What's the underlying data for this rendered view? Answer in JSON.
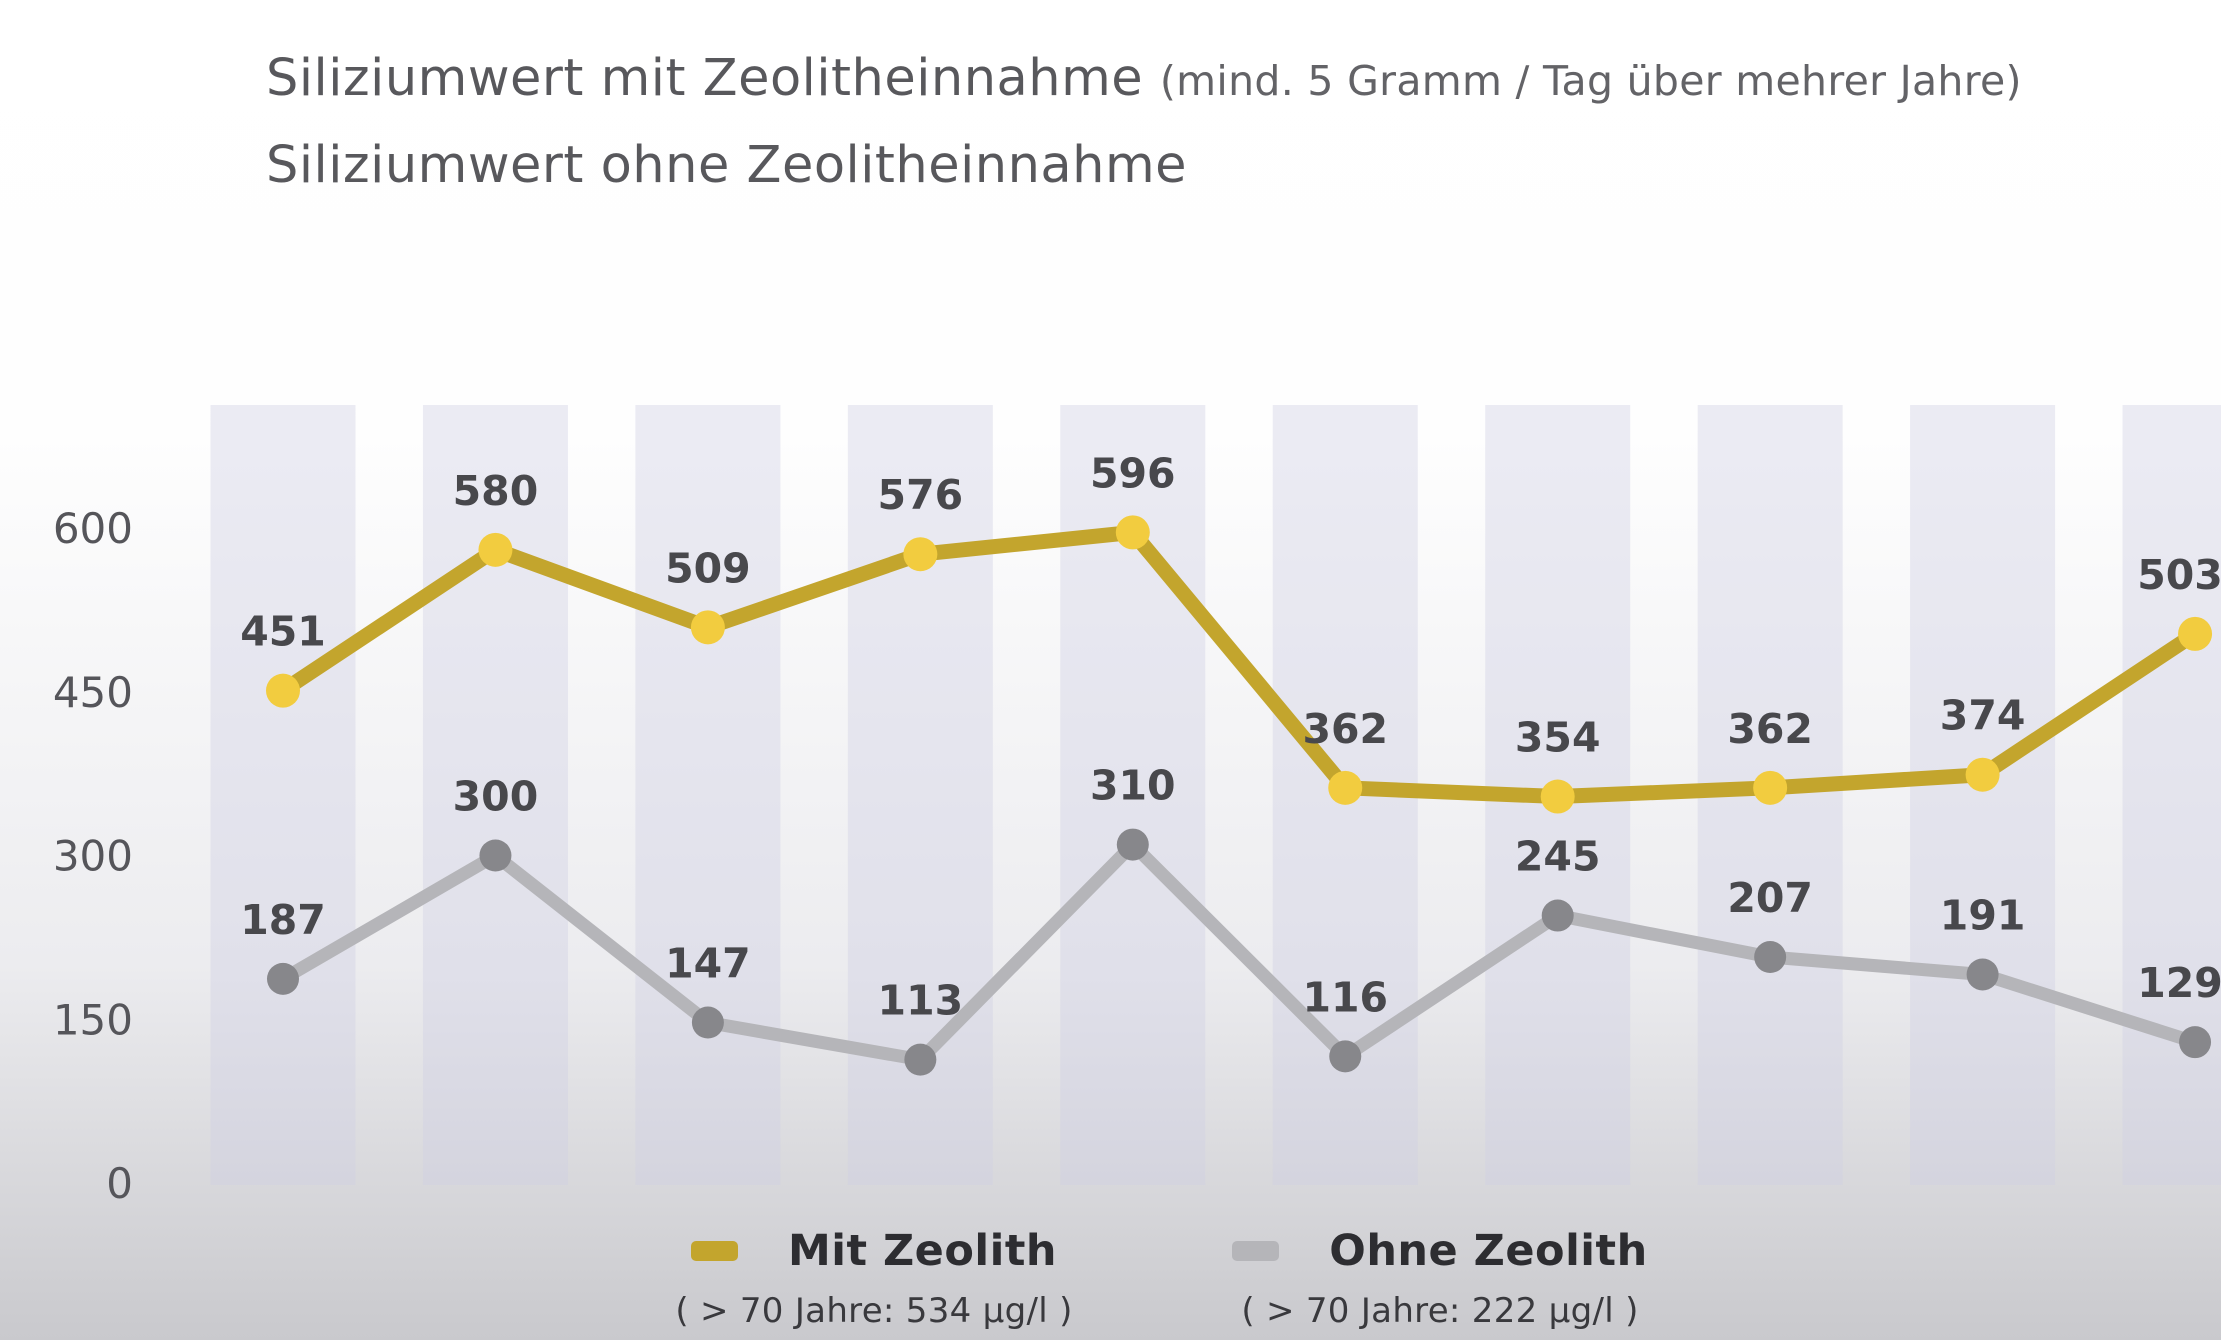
{
  "title": {
    "line1": "Siliziumwert mit Zeolitheinnahme",
    "line1_note": "(mind. 5 Gramm / Tag über mehrer Jahre)",
    "line2": "Siliziumwert ohne Zeolitheinnahme"
  },
  "chart_data": {
    "type": "line",
    "n_points": 10,
    "series": [
      {
        "name": "Mit Zeolith",
        "note": "( > 70 Jahre: 534 µg/l )",
        "values": [
          451,
          580,
          509,
          576,
          596,
          362,
          354,
          362,
          374,
          503
        ],
        "line_color": "#c3a52d",
        "dot_color": "#f2cc3f"
      },
      {
        "name": "Ohne Zeolith",
        "note": "( > 70 Jahre: 222 µg/l )",
        "values": [
          187,
          300,
          147,
          113,
          310,
          116,
          245,
          207,
          191,
          129
        ],
        "line_color": "#b5b5b9",
        "dot_color": "#87878b"
      }
    ],
    "yticks": [
      600,
      450,
      300,
      150,
      0
    ],
    "ylim": [
      0,
      650
    ],
    "x_axis_labels": [],
    "grid": "vertical-bands",
    "band_color": "rgba(207,207,227,0.40)",
    "tick_label_color": "#55555a",
    "data_label_color": "#48484c",
    "legend_position": "bottom"
  }
}
